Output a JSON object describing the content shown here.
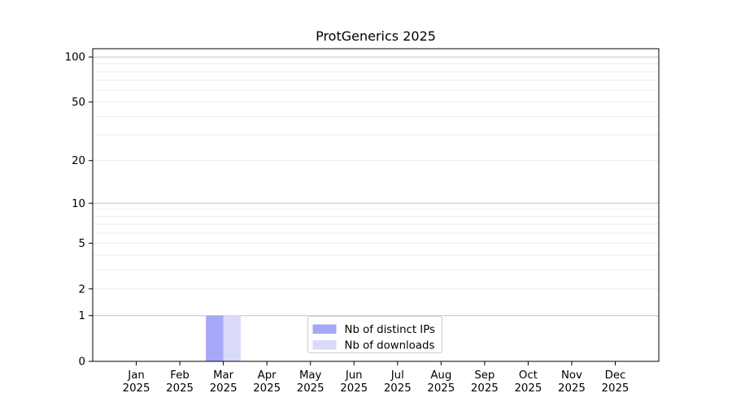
{
  "figure": {
    "background": "#ffffff"
  },
  "chart_data": {
    "type": "bar",
    "title": "ProtGenerics 2025",
    "xlabel": "",
    "ylabel": "",
    "categories": [
      "Jan",
      "Feb",
      "Mar",
      "Apr",
      "May",
      "Jun",
      "Jul",
      "Aug",
      "Sep",
      "Oct",
      "Nov",
      "Dec"
    ],
    "x_year_label": "2025",
    "series": [
      {
        "name": "Nb of distinct IPs",
        "color": "#a7a7f7",
        "values": [
          0,
          0,
          1,
          0,
          0,
          0,
          0,
          0,
          0,
          0,
          0,
          0
        ]
      },
      {
        "name": "Nb of downloads",
        "color": "#d9d9f9",
        "values": [
          0,
          0,
          1,
          0,
          0,
          0,
          0,
          0,
          0,
          0,
          0,
          0
        ]
      }
    ],
    "yscale": "log1p",
    "ylim": [
      0,
      113.5
    ],
    "yticks": [
      0,
      1,
      2,
      5,
      10,
      20,
      50,
      100
    ],
    "major_gridlines": [
      1,
      10,
      100
    ],
    "minor_gridlines": [
      2,
      3,
      4,
      5,
      6,
      7,
      8,
      9,
      20,
      30,
      40,
      50,
      60,
      70,
      80,
      90
    ],
    "grid": true,
    "legend": {
      "entries": [
        "Nb of distinct IPs",
        "Nb of downloads"
      ],
      "position": "bottom-center-inside"
    },
    "colors": {
      "major_grid": "#c2c2c2",
      "minor_grid": "#ececec",
      "axis": "#000000",
      "text": "#000000",
      "legend_border": "#cccccc",
      "legend_fill": "#ffffff"
    }
  }
}
